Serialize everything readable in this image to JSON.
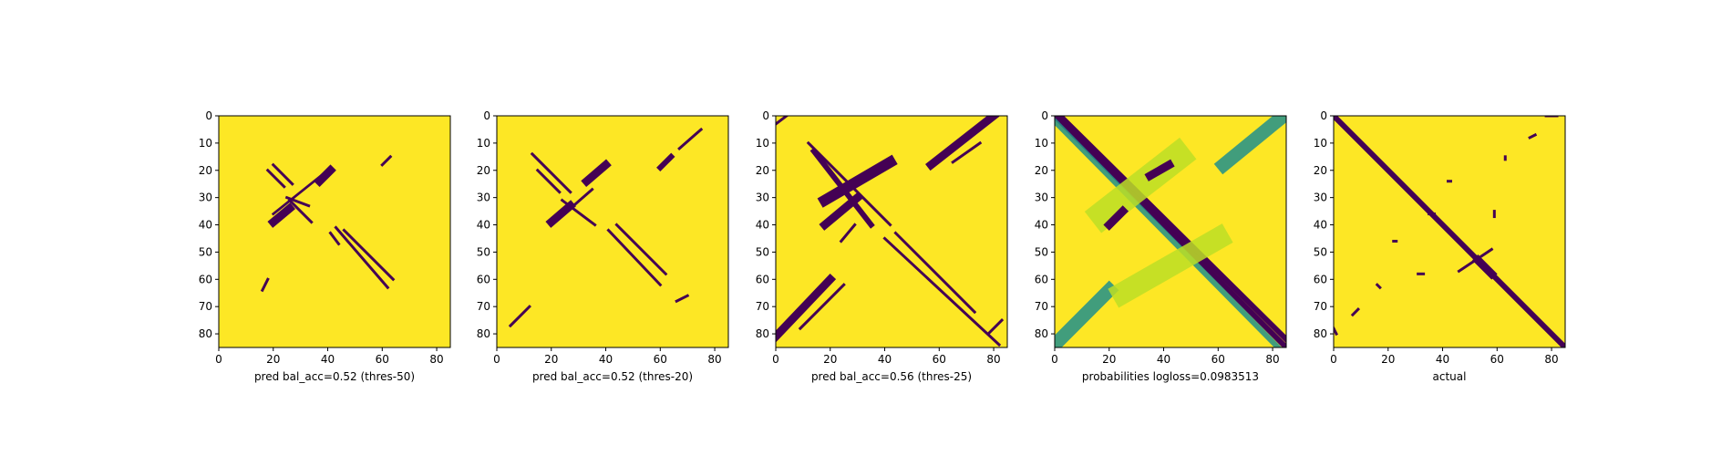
{
  "figure": {
    "colors": {
      "background": "#fde725",
      "mark": "#440154",
      "mid": "#21918c",
      "light": "#bddf26"
    }
  },
  "chart_data": [
    {
      "type": "heatmap",
      "xlabel": "pred bal_acc=0.52 (thres-50)",
      "xlim": [
        0,
        85
      ],
      "ylim": [
        85,
        0
      ],
      "xticks": [
        0,
        20,
        40,
        60,
        80
      ],
      "yticks": [
        0,
        10,
        20,
        30,
        40,
        50,
        60,
        70,
        80
      ],
      "segments": [
        {
          "from": [
            18,
            20
          ],
          "to": [
            24,
            26
          ],
          "value": 1,
          "width": 1
        },
        {
          "from": [
            20,
            18
          ],
          "to": [
            27,
            25
          ],
          "value": 1,
          "width": 1
        },
        {
          "from": [
            33,
            33
          ],
          "to": [
            25,
            30
          ],
          "value": 1,
          "width": 1
        },
        {
          "from": [
            26,
            31
          ],
          "to": [
            34,
            39
          ],
          "value": 1,
          "width": 1
        },
        {
          "from": [
            20,
            36
          ],
          "to": [
            40,
            20
          ],
          "value": 1,
          "width": 0
        },
        {
          "from": [
            37,
            24
          ],
          "to": [
            41,
            20
          ],
          "value": 1,
          "width": 3
        },
        {
          "from": [
            20,
            39
          ],
          "to": [
            26,
            34
          ],
          "value": 1,
          "width": 3
        },
        {
          "from": [
            43,
            41
          ],
          "to": [
            62,
            63
          ],
          "value": 1,
          "width": 1
        },
        {
          "from": [
            46,
            42
          ],
          "to": [
            64,
            60
          ],
          "value": 1,
          "width": 1
        },
        {
          "from": [
            41,
            43
          ],
          "to": [
            44,
            47
          ],
          "value": 1,
          "width": 1
        },
        {
          "from": [
            60,
            18
          ],
          "to": [
            63,
            15
          ],
          "value": 1,
          "width": 1
        },
        {
          "from": [
            16,
            64
          ],
          "to": [
            18,
            60
          ],
          "value": 1,
          "width": 1
        }
      ]
    },
    {
      "type": "heatmap",
      "xlabel": "pred bal_acc=0.52 (thres-20)",
      "xlim": [
        0,
        85
      ],
      "ylim": [
        85,
        0
      ],
      "xticks": [
        0,
        20,
        40,
        60,
        80
      ],
      "yticks": [
        0,
        10,
        20,
        30,
        40,
        50,
        60,
        70,
        80
      ],
      "segments": [
        {
          "from": [
            13,
            14
          ],
          "to": [
            27,
            28
          ],
          "value": 1,
          "width": 1
        },
        {
          "from": [
            15,
            20
          ],
          "to": [
            23,
            28
          ],
          "value": 1,
          "width": 1
        },
        {
          "from": [
            20,
            39
          ],
          "to": [
            27,
            33
          ],
          "value": 1,
          "width": 3
        },
        {
          "from": [
            33,
            24
          ],
          "to": [
            40,
            18
          ],
          "value": 1,
          "width": 3
        },
        {
          "from": [
            24,
            31
          ],
          "to": [
            36,
            40
          ],
          "value": 1,
          "width": 1
        },
        {
          "from": [
            27,
            34
          ],
          "to": [
            35,
            27
          ],
          "value": 1,
          "width": 1
        },
        {
          "from": [
            41,
            42
          ],
          "to": [
            60,
            62
          ],
          "value": 1,
          "width": 1
        },
        {
          "from": [
            44,
            40
          ],
          "to": [
            62,
            58
          ],
          "value": 1,
          "width": 1
        },
        {
          "from": [
            60,
            19
          ],
          "to": [
            64,
            15
          ],
          "value": 1,
          "width": 2
        },
        {
          "from": [
            67,
            12
          ],
          "to": [
            75,
            5
          ],
          "value": 1,
          "width": 1
        },
        {
          "from": [
            5,
            77
          ],
          "to": [
            12,
            70
          ],
          "value": 1,
          "width": 1
        },
        {
          "from": [
            66,
            68
          ],
          "to": [
            70,
            66
          ],
          "value": 1,
          "width": 1
        }
      ]
    },
    {
      "type": "heatmap",
      "xlabel": "pred bal_acc=0.56 (thres-25)",
      "xlim": [
        0,
        85
      ],
      "ylim": [
        85,
        0
      ],
      "xticks": [
        0,
        20,
        40,
        60,
        80
      ],
      "yticks": [
        0,
        10,
        20,
        30,
        40,
        50,
        60,
        70,
        80
      ],
      "segments": [
        {
          "from": [
            12,
            10
          ],
          "to": [
            42,
            40
          ],
          "value": 1,
          "width": 1
        },
        {
          "from": [
            14,
            13
          ],
          "to": [
            35,
            40
          ],
          "value": 1,
          "width": 2
        },
        {
          "from": [
            18,
            31
          ],
          "to": [
            42,
            17
          ],
          "value": 1,
          "width": 4
        },
        {
          "from": [
            18,
            40
          ],
          "to": [
            30,
            30
          ],
          "value": 1,
          "width": 3
        },
        {
          "from": [
            40,
            45
          ],
          "to": [
            82,
            84
          ],
          "value": 1,
          "width": 1
        },
        {
          "from": [
            44,
            43
          ],
          "to": [
            73,
            72
          ],
          "value": 1,
          "width": 1
        },
        {
          "from": [
            0,
            81
          ],
          "to": [
            20,
            60
          ],
          "value": 1,
          "width": 3
        },
        {
          "from": [
            9,
            78
          ],
          "to": [
            25,
            62
          ],
          "value": 1,
          "width": 1
        },
        {
          "from": [
            57,
            18
          ],
          "to": [
            80,
            0
          ],
          "value": 1,
          "width": 3
        },
        {
          "from": [
            65,
            17
          ],
          "to": [
            75,
            10
          ],
          "value": 1,
          "width": 1
        },
        {
          "from": [
            0,
            3
          ],
          "to": [
            4,
            0
          ],
          "value": 1,
          "width": 1
        },
        {
          "from": [
            24,
            46
          ],
          "to": [
            29,
            40
          ],
          "value": 1,
          "width": 1
        },
        {
          "from": [
            78,
            80
          ],
          "to": [
            83,
            75
          ],
          "value": 1,
          "width": 1
        }
      ]
    },
    {
      "type": "heatmap",
      "xlabel": "probabilities logloss=0.0983513",
      "xlim": [
        0,
        85
      ],
      "ylim": [
        85,
        0
      ],
      "xticks": [
        0,
        20,
        40,
        60,
        80
      ],
      "yticks": [
        0,
        10,
        20,
        30,
        40,
        50,
        60,
        70,
        80
      ],
      "segments": [
        {
          "from": [
            0,
            0
          ],
          "to": [
            85,
            85
          ],
          "value": 0.7,
          "width": 2
        },
        {
          "from": [
            2,
            0
          ],
          "to": [
            85,
            82
          ],
          "value": 0.7,
          "width": 2
        },
        {
          "from": [
            0,
            2
          ],
          "to": [
            82,
            85
          ],
          "value": 0.5,
          "width": 2
        },
        {
          "from": [
            0,
            84
          ],
          "to": [
            20,
            64
          ],
          "value": 0.5,
          "width": 5
        },
        {
          "from": [
            62,
            18
          ],
          "to": [
            84,
            0
          ],
          "value": 0.5,
          "width": 5
        },
        {
          "from": [
            18,
            36
          ],
          "to": [
            45,
            15
          ],
          "value": 0.4,
          "width": 10
        },
        {
          "from": [
            25,
            65
          ],
          "to": [
            60,
            45
          ],
          "value": 0.25,
          "width": 8
        },
        {
          "from": [
            35,
            22
          ],
          "to": [
            42,
            18
          ],
          "value": 0.85,
          "width": 3
        },
        {
          "from": [
            20,
            40
          ],
          "to": [
            25,
            35
          ],
          "value": 0.8,
          "width": 3
        }
      ]
    },
    {
      "type": "heatmap",
      "xlabel": "actual",
      "xlim": [
        0,
        85
      ],
      "ylim": [
        85,
        0
      ],
      "xticks": [
        0,
        20,
        40,
        60,
        80
      ],
      "yticks": [
        0,
        10,
        20,
        30,
        40,
        50,
        60,
        70,
        80
      ],
      "segments": [
        {
          "from": [
            0,
            0
          ],
          "to": [
            85,
            85
          ],
          "value": 1,
          "width": 2
        },
        {
          "from": [
            53,
            53
          ],
          "to": [
            58,
            58
          ],
          "value": 1,
          "width": 3
        },
        {
          "from": [
            46,
            57
          ],
          "to": [
            58,
            49
          ],
          "value": 1,
          "width": 1
        },
        {
          "from": [
            78,
            0
          ],
          "to": [
            82,
            0
          ],
          "value": 1,
          "width": 1
        },
        {
          "from": [
            72,
            8
          ],
          "to": [
            74,
            7
          ],
          "value": 1,
          "width": 1
        },
        {
          "from": [
            0,
            78
          ],
          "to": [
            1,
            80
          ],
          "value": 1,
          "width": 1
        },
        {
          "from": [
            7,
            73
          ],
          "to": [
            9,
            71
          ],
          "value": 1,
          "width": 1
        },
        {
          "from": [
            22,
            46
          ],
          "to": [
            23,
            46
          ],
          "value": 1,
          "width": 1
        },
        {
          "from": [
            31,
            58
          ],
          "to": [
            33,
            58
          ],
          "value": 1,
          "width": 1
        },
        {
          "from": [
            35,
            36
          ],
          "to": [
            37,
            36
          ],
          "value": 1,
          "width": 1
        },
        {
          "from": [
            42,
            24
          ],
          "to": [
            43,
            24
          ],
          "value": 1,
          "width": 1
        },
        {
          "from": [
            59,
            35
          ],
          "to": [
            59,
            37
          ],
          "value": 1,
          "width": 1
        },
        {
          "from": [
            16,
            62
          ],
          "to": [
            17,
            63
          ],
          "value": 1,
          "width": 1
        },
        {
          "from": [
            63,
            15
          ],
          "to": [
            63,
            16
          ],
          "value": 1,
          "width": 1
        }
      ]
    }
  ]
}
